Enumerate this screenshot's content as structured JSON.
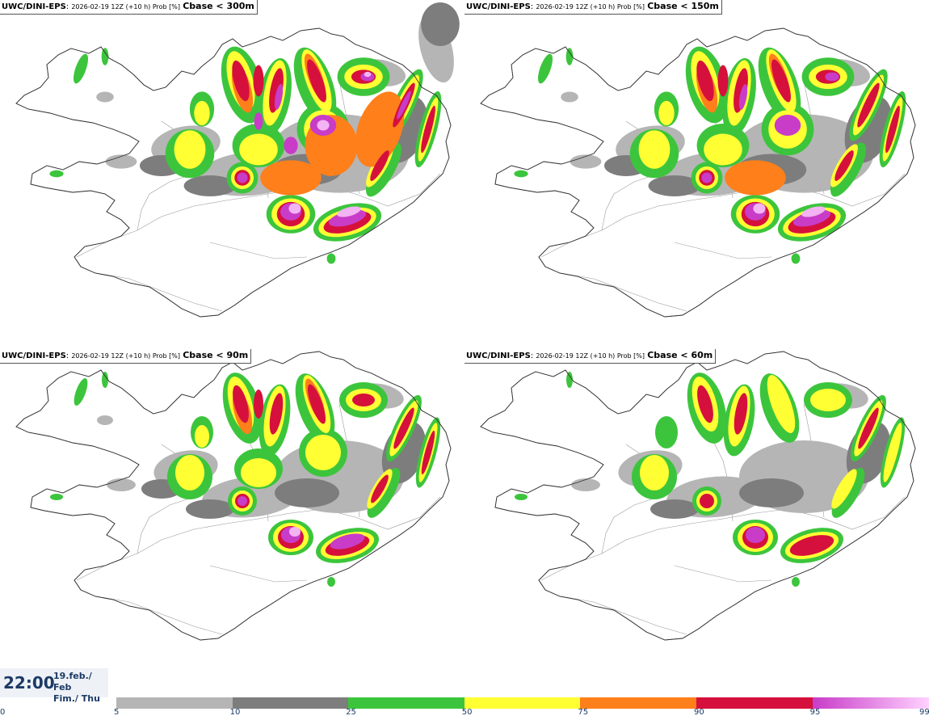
{
  "panels": [
    {
      "model": "UWC/DINI-EPS",
      "run": "2026-02-19 12Z (+10 h) Prob [%]",
      "variable": "Cbase < 300m",
      "level": 4
    },
    {
      "model": "UWC/DINI-EPS",
      "run": "2026-02-19 12Z (+10 h) Prob [%]",
      "variable": "Cbase < 150m",
      "level": 3
    },
    {
      "model": "UWC/DINI-EPS",
      "run": "2026-02-19 12Z (+10 h) Prob [%]",
      "variable": "Cbase < 90m",
      "level": 2
    },
    {
      "model": "UWC/DINI-EPS",
      "run": "2026-02-19 12Z (+10 h) Prob [%]",
      "variable": "Cbase < 60m",
      "level": 1
    }
  ],
  "time": {
    "hour": "22:00",
    "date_line1": "19.feb./ Feb",
    "date_line2": "Fim./ Thu"
  },
  "colorbar": {
    "ticks": [
      "0",
      "5",
      "10",
      "25",
      "50",
      "75",
      "90",
      "95",
      "99"
    ],
    "colors": [
      "#b5b5b5",
      "#7d7d7d",
      "#3cc53c",
      "#ffff33",
      "#ff7f1a",
      "#d6103c",
      "#c83cc8"
    ],
    "last_gradient_end": "#ffd2ff"
  }
}
